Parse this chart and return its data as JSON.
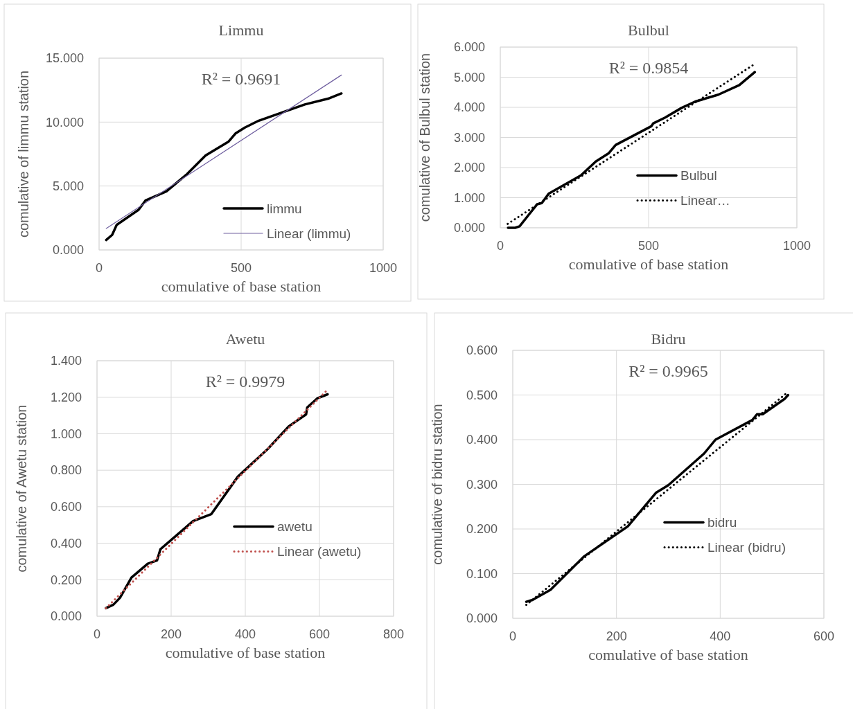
{
  "chart_data": [
    {
      "type": "line",
      "title": "Limmu",
      "xlabel": "comulative of base station",
      "ylabel": "comulative of limmu station",
      "xlim": [
        0,
        1000
      ],
      "xticks": [
        0,
        500,
        1000
      ],
      "ylim": [
        0,
        15
      ],
      "yticks": [
        {
          "value": 0,
          "label": "0.000"
        },
        {
          "value": 5,
          "label": "5.000"
        },
        {
          "value": 10,
          "label": "10.000"
        },
        {
          "value": 15,
          "label": "15.000"
        }
      ],
      "grid": true,
      "legend": "bottom right",
      "marker": "none",
      "annotations": [
        "R² = 0.9691"
      ],
      "series": [
        {
          "name": "limmu",
          "color": "#000000",
          "line_style": "solid",
          "x": [
            25,
            46,
            62,
            139,
            163,
            237,
            310,
            375,
            456,
            480,
            513,
            562,
            724,
            806,
            853
          ],
          "values": [
            0.78,
            1.18,
            1.96,
            3.14,
            3.86,
            4.58,
            5.94,
            7.39,
            8.48,
            9.11,
            9.57,
            10.11,
            11.38,
            11.83,
            12.24
          ]
        },
        {
          "name": "Linear (limmu)",
          "color": "#7060a0",
          "line_style": "solid",
          "x": [
            25,
            853
          ],
          "values": [
            1.68,
            13.68
          ]
        }
      ]
    },
    {
      "type": "line",
      "title": "Bulbul",
      "xlabel": "comulative of base station",
      "ylabel": "comulative of Bulbul station",
      "xlim": [
        0,
        1000
      ],
      "xticks": [
        0,
        500,
        1000
      ],
      "ylim": [
        0,
        6
      ],
      "yticks": [
        {
          "value": 0,
          "label": "0.000"
        },
        {
          "value": 1,
          "label": "1.000"
        },
        {
          "value": 2,
          "label": "2.000"
        },
        {
          "value": 3,
          "label": "3.000"
        },
        {
          "value": 4,
          "label": "4.000"
        },
        {
          "value": 5,
          "label": "5.000"
        },
        {
          "value": 6,
          "label": "6.000"
        }
      ],
      "grid": true,
      "legend": "right",
      "marker": "none",
      "annotations": [
        "R² = 0.9854"
      ],
      "series": [
        {
          "name": "Bulbul",
          "color": "#000000",
          "line_style": "solid",
          "x": [
            26,
            50,
            65,
            124,
            140,
            163,
            272,
            322,
            365,
            389,
            509,
            516,
            556,
            611,
            657,
            735,
            806,
            858
          ],
          "values": [
            0,
            0,
            0.05,
            0.78,
            0.82,
            1.13,
            1.74,
            2.2,
            2.47,
            2.75,
            3.37,
            3.47,
            3.66,
            3.98,
            4.19,
            4.42,
            4.74,
            5.17
          ]
        },
        {
          "name": "Linear…",
          "color": "#000000",
          "line_style": "dotted",
          "x": [
            25,
            852
          ],
          "values": [
            0.13,
            5.4
          ]
        }
      ]
    },
    {
      "type": "line",
      "title": "Awetu",
      "xlabel": "comulative of base station",
      "ylabel": "comulative of Awetu station",
      "xlim": [
        0,
        800
      ],
      "xticks": [
        0,
        200,
        400,
        600,
        800
      ],
      "ylim": [
        0,
        1.4
      ],
      "yticks": [
        {
          "value": 0,
          "label": "0.000"
        },
        {
          "value": 0.2,
          "label": "0.200"
        },
        {
          "value": 0.4,
          "label": "0.400"
        },
        {
          "value": 0.6,
          "label": "0.600"
        },
        {
          "value": 0.8,
          "label": "0.800"
        },
        {
          "value": 1,
          "label": "1.000"
        },
        {
          "value": 1.2,
          "label": "1.200"
        },
        {
          "value": 1.4,
          "label": "1.400"
        }
      ],
      "grid": true,
      "legend": "right",
      "marker": "none",
      "annotations": [
        "R² = 0.9979"
      ],
      "series": [
        {
          "name": "awetu",
          "color": "#000000",
          "line_style": "solid",
          "x": [
            24,
            44,
            62,
            93,
            137,
            162,
            171,
            259,
            308,
            380,
            461,
            517,
            564,
            567,
            595,
            622
          ],
          "values": [
            0.044,
            0.063,
            0.101,
            0.212,
            0.288,
            0.306,
            0.367,
            0.521,
            0.559,
            0.765,
            0.917,
            1.04,
            1.106,
            1.144,
            1.195,
            1.216
          ]
        },
        {
          "name": "Linear (awetu)",
          "color": "#c0504d",
          "line_style": "dotted",
          "x": [
            24,
            618
          ],
          "values": [
            0.044,
            1.233
          ]
        }
      ]
    },
    {
      "type": "line",
      "title": "Bidru",
      "xlabel": "comulative of base station",
      "ylabel": "comulative of bidru station",
      "xlim": [
        0,
        600
      ],
      "xticks": [
        0,
        200,
        400,
        600
      ],
      "ylim": [
        0,
        0.6
      ],
      "yticks": [
        {
          "value": 0,
          "label": "0.000"
        },
        {
          "value": 0.1,
          "label": "0.100"
        },
        {
          "value": 0.2,
          "label": "0.200"
        },
        {
          "value": 0.3,
          "label": "0.300"
        },
        {
          "value": 0.4,
          "label": "0.400"
        },
        {
          "value": 0.5,
          "label": "0.500"
        },
        {
          "value": 0.6,
          "label": "0.600"
        }
      ],
      "grid": true,
      "legend": "right",
      "marker": "none",
      "annotations": [
        "R² = 0.9965"
      ],
      "series": [
        {
          "name": "bidru",
          "color": "#000000",
          "line_style": "solid",
          "x": [
            26,
            38,
            73,
            138,
            222,
            276,
            300,
            369,
            391,
            462,
            471,
            482,
            524,
            531
          ],
          "values": [
            0.037,
            0.041,
            0.064,
            0.139,
            0.206,
            0.281,
            0.298,
            0.369,
            0.4,
            0.444,
            0.457,
            0.457,
            0.491,
            0.5
          ]
        },
        {
          "name": "Linear (bidru)",
          "color": "#000000",
          "line_style": "dotted",
          "x": [
            26,
            527
          ],
          "values": [
            0.03,
            0.503
          ]
        }
      ]
    }
  ]
}
